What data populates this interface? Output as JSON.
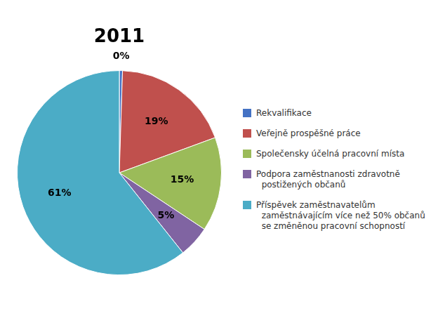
{
  "chart_data": {
    "type": "pie",
    "title": "2011",
    "categories": [
      "Rekvalifikace",
      "Veřejně prospěšné práce",
      "Společensky účelná pracovní místa",
      "Podpora zaměstnanosti zdravotně\n  postižených občanů",
      "Příspěvek zaměstnavatelům\n  zaměstnávajícím více než 50% občanů\n  se změněnou pracovní schopností"
    ],
    "values": [
      0.5,
      19,
      15,
      5,
      61
    ],
    "value_labels": [
      "0%",
      "19%",
      "15%",
      "5%",
      "61%"
    ],
    "colors": [
      "#4472C4",
      "#C0504D",
      "#9BBB59",
      "#8064A2",
      "#4BACC6"
    ],
    "data_labels": true,
    "legend": "right"
  }
}
